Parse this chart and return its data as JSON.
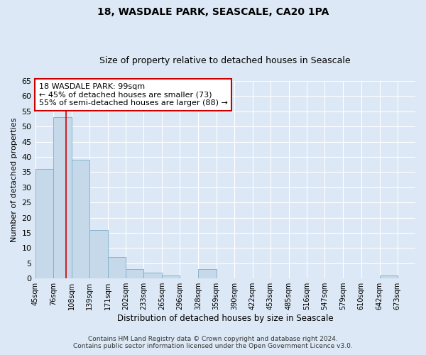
{
  "title": "18, WASDALE PARK, SEASCALE, CA20 1PA",
  "subtitle": "Size of property relative to detached houses in Seascale",
  "xlabel": "Distribution of detached houses by size in Seascale",
  "ylabel": "Number of detached properties",
  "bar_edges": [
    45,
    76,
    108,
    139,
    171,
    202,
    233,
    265,
    296,
    328,
    359,
    390,
    422,
    453,
    485,
    516,
    547,
    579,
    610,
    642,
    673
  ],
  "bar_heights": [
    36,
    53,
    39,
    16,
    7,
    3,
    2,
    1,
    0,
    3,
    0,
    0,
    0,
    0,
    0,
    0,
    0,
    0,
    0,
    1
  ],
  "bar_color": "#c5d9ea",
  "bar_edge_color": "#7aaec8",
  "property_line_x": 99,
  "property_line_color": "#cc0000",
  "annotation_text": "18 WASDALE PARK: 99sqm\n← 45% of detached houses are smaller (73)\n55% of semi-detached houses are larger (88) →",
  "annotation_box_color": "#ffffff",
  "annotation_box_edge_color": "#cc0000",
  "ylim": [
    0,
    65
  ],
  "yticks": [
    0,
    5,
    10,
    15,
    20,
    25,
    30,
    35,
    40,
    45,
    50,
    55,
    60,
    65
  ],
  "tick_labels": [
    "45sqm",
    "76sqm",
    "108sqm",
    "139sqm",
    "171sqm",
    "202sqm",
    "233sqm",
    "265sqm",
    "296sqm",
    "328sqm",
    "359sqm",
    "390sqm",
    "422sqm",
    "453sqm",
    "485sqm",
    "516sqm",
    "547sqm",
    "579sqm",
    "610sqm",
    "642sqm",
    "673sqm"
  ],
  "footer_line1": "Contains HM Land Registry data © Crown copyright and database right 2024.",
  "footer_line2": "Contains public sector information licensed under the Open Government Licence v3.0.",
  "background_color": "#dce8f5",
  "plot_background_color": "#dce8f5",
  "grid_color": "#ffffff",
  "title_fontsize": 10,
  "subtitle_fontsize": 9,
  "annotation_fontsize": 8,
  "footer_fontsize": 6.5,
  "xlabel_fontsize": 8.5,
  "ylabel_fontsize": 8,
  "tick_fontsize": 7,
  "ytick_fontsize": 8
}
